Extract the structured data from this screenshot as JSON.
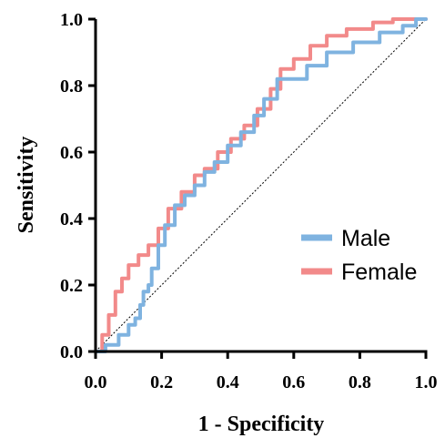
{
  "chart_data": {
    "type": "line",
    "title": "",
    "xlabel": "1 - Specificity",
    "ylabel": "Sensitivity",
    "xlim": [
      0,
      1
    ],
    "ylim": [
      0,
      1
    ],
    "x_ticks": [
      "0.0",
      "0.2",
      "0.4",
      "0.6",
      "0.8",
      "1.0"
    ],
    "y_ticks": [
      "0.0",
      "0.2",
      "0.4",
      "0.6",
      "0.8",
      "1.0"
    ],
    "grid": false,
    "legend_position": "center-right",
    "reference_line": {
      "style": "dotted",
      "from": [
        0,
        0
      ],
      "to": [
        1,
        1
      ],
      "color": "#000000"
    },
    "series": [
      {
        "name": "Male",
        "color": "#7fb3e0",
        "points": [
          [
            0,
            0
          ],
          [
            0.03,
            0.02
          ],
          [
            0.07,
            0.05
          ],
          [
            0.1,
            0.08
          ],
          [
            0.12,
            0.1
          ],
          [
            0.135,
            0.14
          ],
          [
            0.145,
            0.18
          ],
          [
            0.16,
            0.2
          ],
          [
            0.17,
            0.25
          ],
          [
            0.19,
            0.32
          ],
          [
            0.21,
            0.38
          ],
          [
            0.24,
            0.44
          ],
          [
            0.27,
            0.47
          ],
          [
            0.3,
            0.5
          ],
          [
            0.33,
            0.54
          ],
          [
            0.36,
            0.57
          ],
          [
            0.4,
            0.62
          ],
          [
            0.44,
            0.66
          ],
          [
            0.48,
            0.71
          ],
          [
            0.51,
            0.76
          ],
          [
            0.55,
            0.82
          ],
          [
            0.6,
            0.82
          ],
          [
            0.64,
            0.86
          ],
          [
            0.7,
            0.9
          ],
          [
            0.78,
            0.93
          ],
          [
            0.86,
            0.96
          ],
          [
            0.93,
            0.98
          ],
          [
            0.97,
            1.0
          ],
          [
            1,
            1
          ]
        ]
      },
      {
        "name": "Female",
        "color": "#f28a8a",
        "points": [
          [
            0,
            0
          ],
          [
            0.02,
            0.05
          ],
          [
            0.04,
            0.11
          ],
          [
            0.06,
            0.18
          ],
          [
            0.08,
            0.22
          ],
          [
            0.1,
            0.26
          ],
          [
            0.13,
            0.29
          ],
          [
            0.16,
            0.32
          ],
          [
            0.19,
            0.37
          ],
          [
            0.22,
            0.43
          ],
          [
            0.26,
            0.48
          ],
          [
            0.3,
            0.53
          ],
          [
            0.33,
            0.55
          ],
          [
            0.37,
            0.6
          ],
          [
            0.41,
            0.64
          ],
          [
            0.45,
            0.68
          ],
          [
            0.49,
            0.73
          ],
          [
            0.53,
            0.79
          ],
          [
            0.56,
            0.85
          ],
          [
            0.6,
            0.88
          ],
          [
            0.65,
            0.92
          ],
          [
            0.7,
            0.95
          ],
          [
            0.76,
            0.97
          ],
          [
            0.84,
            0.99
          ],
          [
            0.9,
            1.0
          ],
          [
            1,
            1
          ]
        ]
      }
    ]
  }
}
